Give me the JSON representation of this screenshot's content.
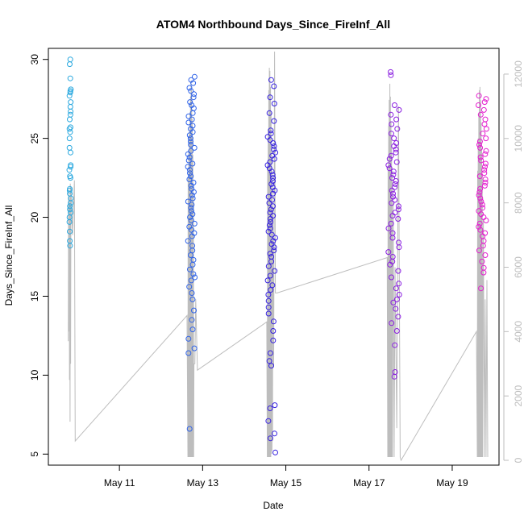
{
  "chart_data": {
    "type": "scatter",
    "title": "ATOM4 Northbound Days_Since_FireInf_All",
    "xlabel": "Date",
    "ylabel": "Days_Since_FireInf_All",
    "x_unit": "date",
    "x_ticks": [
      {
        "value": "2013-05-11",
        "label": "May 11"
      },
      {
        "value": "2013-05-13",
        "label": "May 13"
      },
      {
        "value": "2013-05-15",
        "label": "May 15"
      },
      {
        "value": "2013-05-17",
        "label": "May 17"
      },
      {
        "value": "2013-05-19",
        "label": "May 19"
      }
    ],
    "xlim": [
      "2013-05-09T07:00",
      "2013-05-20T03:00"
    ],
    "ylim": [
      4.3,
      30.7
    ],
    "y_ticks": [
      5,
      10,
      15,
      20,
      25,
      30
    ],
    "y2lim": [
      -150,
      12800
    ],
    "y2_ticks": [
      0,
      2000,
      4000,
      6000,
      8000,
      10000,
      12000
    ],
    "y2_color": "#bdbdbd",
    "grid": false,
    "legend": "none",
    "point_style": "open-circle",
    "groups": [
      {
        "date": "2013-05-09",
        "color": "#29a8df",
        "time_range": [
          "2013-05-09T19:00",
          "2013-05-09T20:00"
        ],
        "y_values": [
          30.0,
          29.7,
          28.8,
          28.1,
          28.0,
          27.9,
          27.7,
          27.3,
          27.0,
          26.7,
          26.5,
          26.2,
          25.7,
          25.6,
          25.4,
          25.0,
          24.4,
          24.1,
          23.3,
          23.2,
          23.0,
          22.6,
          22.5,
          21.8,
          21.7,
          21.5,
          21.2,
          20.9,
          20.7,
          20.5,
          20.3,
          20.0,
          19.7,
          19.1,
          18.5,
          18.2
        ]
      },
      {
        "date": "2013-05-12",
        "color": "#2f63e8",
        "time_range": [
          "2013-05-12T15:30",
          "2013-05-12T19:30"
        ],
        "y_values": [
          28.9,
          28.7,
          28.5,
          28.2,
          28.0,
          27.8,
          27.6,
          27.3,
          27.1,
          26.9,
          26.6,
          26.4,
          26.2,
          26.0,
          25.8,
          25.6,
          25.4,
          25.2,
          25.0,
          24.8,
          24.6,
          24.4,
          24.2,
          24.0,
          23.8,
          23.6,
          23.4,
          23.2,
          23.0,
          22.8,
          22.6,
          22.4,
          22.2,
          22.0,
          21.8,
          21.6,
          21.4,
          21.2,
          21.0,
          20.8,
          20.6,
          20.4,
          20.2,
          20.0,
          19.8,
          19.6,
          19.4,
          19.2,
          19.0,
          18.8,
          18.5,
          18.2,
          17.9,
          17.6,
          17.3,
          17.0,
          16.7,
          16.4,
          16.2,
          16.0,
          15.6,
          15.2,
          14.8,
          14.1,
          13.5,
          12.9,
          12.3,
          11.7,
          11.4,
          6.6
        ]
      },
      {
        "date": "2013-05-14",
        "color": "#3520e0",
        "time_range": [
          "2013-05-14T13:30",
          "2013-05-14T18:00"
        ],
        "y_values": [
          28.7,
          28.3,
          27.6,
          27.2,
          26.6,
          26.1,
          25.5,
          25.3,
          25.1,
          24.9,
          24.7,
          24.5,
          24.3,
          24.1,
          23.9,
          23.7,
          23.5,
          23.3,
          23.1,
          22.9,
          22.7,
          22.5,
          22.3,
          22.1,
          21.9,
          21.7,
          21.5,
          21.3,
          21.1,
          20.9,
          20.7,
          20.5,
          20.3,
          20.1,
          19.9,
          19.7,
          19.5,
          19.3,
          19.1,
          18.9,
          18.7,
          18.5,
          18.3,
          18.1,
          17.9,
          17.7,
          17.5,
          17.2,
          16.9,
          16.6,
          16.3,
          16.0,
          15.7,
          15.4,
          15.1,
          14.7,
          14.3,
          13.9,
          13.4,
          12.8,
          12.2,
          11.4,
          10.9,
          10.6,
          8.1,
          7.9,
          7.1,
          6.3,
          6.0,
          5.1
        ]
      },
      {
        "date": "2013-05-17",
        "color": "#8a1ee0",
        "time_range": [
          "2013-05-17T11:00",
          "2013-05-17T17:30"
        ],
        "y_values": [
          29.2,
          29.0,
          27.1,
          26.8,
          26.5,
          26.2,
          25.9,
          25.6,
          25.3,
          25.0,
          24.7,
          24.5,
          24.3,
          24.1,
          23.9,
          23.7,
          23.5,
          23.3,
          23.1,
          22.9,
          22.7,
          22.5,
          22.3,
          22.1,
          21.9,
          21.7,
          21.5,
          21.3,
          21.1,
          20.9,
          20.7,
          20.5,
          20.3,
          20.1,
          19.9,
          19.6,
          19.3,
          19.0,
          18.7,
          18.4,
          18.1,
          17.8,
          17.5,
          17.2,
          17.0,
          16.6,
          16.2,
          15.8,
          15.5,
          15.1,
          14.8,
          14.6,
          14.2,
          13.7,
          13.3,
          12.8,
          11.9,
          10.2,
          9.9
        ]
      },
      {
        "date": "2013-05-19",
        "color": "#e41ecf",
        "time_range": [
          "2013-05-19T15:00",
          "2013-05-19T20:00"
        ],
        "y_values": [
          27.7,
          27.5,
          27.3,
          27.1,
          26.8,
          26.5,
          26.2,
          25.9,
          25.6,
          25.3,
          25.0,
          24.8,
          24.6,
          24.4,
          24.2,
          24.0,
          23.8,
          23.6,
          23.4,
          23.2,
          23.0,
          22.8,
          22.6,
          22.4,
          22.2,
          22.0,
          21.8,
          21.6,
          21.4,
          21.2,
          21.0,
          20.8,
          20.6,
          20.4,
          20.2,
          20.0,
          19.8,
          19.6,
          19.4,
          19.2,
          19.0,
          18.8,
          18.5,
          18.2,
          17.9,
          17.6,
          17.2,
          16.8,
          16.5,
          15.5
        ]
      }
    ],
    "secondary_series": {
      "type": "line",
      "color": "#bdbdbd",
      "points": [
        [
          "2013-05-09T18:30",
          3700
        ],
        [
          "2013-05-09T18:40",
          8400
        ],
        [
          "2013-05-09T18:50",
          4000
        ],
        [
          "2013-05-09T19:00",
          8200
        ],
        [
          "2013-05-09T19:10",
          2500
        ],
        [
          "2013-05-09T19:20",
          8000
        ],
        [
          "2013-05-09T19:30",
          1200
        ],
        [
          "2013-05-09T19:40",
          8600
        ],
        [
          "2013-05-09T19:50",
          3000
        ],
        [
          "2013-05-09T20:00",
          8500
        ],
        [
          "2013-05-09T21:00",
          7000
        ],
        [
          "2013-05-09T22:00",
          8700
        ],
        [
          "2013-05-09T22:30",
          600
        ],
        [
          "2013-05-12T15:00",
          4500
        ],
        [
          "2013-05-12T15:30",
          100
        ],
        [
          "2013-05-12T15:40",
          8800
        ],
        [
          "2013-05-12T15:50",
          100
        ],
        [
          "2013-05-12T16:00",
          9600
        ],
        [
          "2013-05-12T16:10",
          100
        ],
        [
          "2013-05-12T16:20",
          10200
        ],
        [
          "2013-05-12T16:30",
          100
        ],
        [
          "2013-05-12T16:40",
          10800
        ],
        [
          "2013-05-12T16:50",
          100
        ],
        [
          "2013-05-12T17:00",
          11300
        ],
        [
          "2013-05-12T17:10",
          100
        ],
        [
          "2013-05-12T17:20",
          11800
        ],
        [
          "2013-05-12T17:30",
          100
        ],
        [
          "2013-05-12T17:40",
          11500
        ],
        [
          "2013-05-12T17:50",
          100
        ],
        [
          "2013-05-12T18:00",
          10600
        ],
        [
          "2013-05-12T18:10",
          100
        ],
        [
          "2013-05-12T18:20",
          9500
        ],
        [
          "2013-05-12T18:30",
          100
        ],
        [
          "2013-05-12T18:40",
          8200
        ],
        [
          "2013-05-12T18:50",
          100
        ],
        [
          "2013-05-12T19:00",
          3000
        ],
        [
          "2013-05-12T19:30",
          3000
        ],
        [
          "2013-05-12T20:00",
          5000
        ],
        [
          "2013-05-12T21:00",
          2800
        ],
        [
          "2013-05-14T13:00",
          4300
        ],
        [
          "2013-05-14T13:20",
          100
        ],
        [
          "2013-05-14T13:30",
          9200
        ],
        [
          "2013-05-14T13:40",
          100
        ],
        [
          "2013-05-14T13:50",
          10300
        ],
        [
          "2013-05-14T14:00",
          100
        ],
        [
          "2013-05-14T14:10",
          11500
        ],
        [
          "2013-05-14T14:20",
          100
        ],
        [
          "2013-05-14T14:30",
          12200
        ],
        [
          "2013-05-14T14:40",
          100
        ],
        [
          "2013-05-14T14:50",
          12100
        ],
        [
          "2013-05-14T15:00",
          100
        ],
        [
          "2013-05-14T15:10",
          11600
        ],
        [
          "2013-05-14T15:20",
          100
        ],
        [
          "2013-05-14T15:30",
          10800
        ],
        [
          "2013-05-14T15:40",
          200
        ],
        [
          "2013-05-14T15:50",
          9800
        ],
        [
          "2013-05-14T16:00",
          300
        ],
        [
          "2013-05-14T16:10",
          8500
        ],
        [
          "2013-05-14T16:20",
          600
        ],
        [
          "2013-05-14T16:30",
          7800
        ],
        [
          "2013-05-14T17:00",
          2900
        ],
        [
          "2013-05-14T17:30",
          12700
        ],
        [
          "2013-05-14T18:00",
          5200
        ],
        [
          "2013-05-14T19:00",
          5200
        ],
        [
          "2013-05-17T10:30",
          6300
        ],
        [
          "2013-05-17T10:50",
          100
        ],
        [
          "2013-05-17T11:00",
          9000
        ],
        [
          "2013-05-17T11:10",
          100
        ],
        [
          "2013-05-17T11:20",
          10400
        ],
        [
          "2013-05-17T11:30",
          100
        ],
        [
          "2013-05-17T11:40",
          11200
        ],
        [
          "2013-05-17T11:50",
          100
        ],
        [
          "2013-05-17T12:00",
          11700
        ],
        [
          "2013-05-17T12:10",
          100
        ],
        [
          "2013-05-17T12:20",
          11300
        ],
        [
          "2013-05-17T12:30",
          100
        ],
        [
          "2013-05-17T12:40",
          10500
        ],
        [
          "2013-05-17T12:50",
          100
        ],
        [
          "2013-05-17T13:00",
          10000
        ],
        [
          "2013-05-17T13:10",
          100
        ],
        [
          "2013-05-17T13:20",
          9000
        ],
        [
          "2013-05-17T13:30",
          100
        ],
        [
          "2013-05-17T14:00",
          8000
        ],
        [
          "2013-05-17T14:30",
          100
        ],
        [
          "2013-05-17T15:00",
          6000
        ],
        [
          "2013-05-17T16:00",
          1000
        ],
        [
          "2013-05-17T17:00",
          11000
        ],
        [
          "2013-05-17T18:00",
          100
        ],
        [
          "2013-05-17T18:30",
          0
        ],
        [
          "2013-05-19T14:00",
          4000
        ],
        [
          "2013-05-19T14:30",
          100
        ],
        [
          "2013-05-19T14:40",
          9000
        ],
        [
          "2013-05-19T14:50",
          100
        ],
        [
          "2013-05-19T15:00",
          10000
        ],
        [
          "2013-05-19T15:10",
          100
        ],
        [
          "2013-05-19T15:20",
          10800
        ],
        [
          "2013-05-19T15:30",
          100
        ],
        [
          "2013-05-19T15:40",
          11500
        ],
        [
          "2013-05-19T15:50",
          100
        ],
        [
          "2013-05-19T16:00",
          11600
        ],
        [
          "2013-05-19T16:10",
          100
        ],
        [
          "2013-05-19T16:20",
          11200
        ],
        [
          "2013-05-19T16:30",
          100
        ],
        [
          "2013-05-19T16:40",
          10500
        ],
        [
          "2013-05-19T16:50",
          100
        ],
        [
          "2013-05-19T17:00",
          9700
        ],
        [
          "2013-05-19T17:10",
          100
        ],
        [
          "2013-05-19T17:20",
          8800
        ],
        [
          "2013-05-19T17:30",
          100
        ],
        [
          "2013-05-19T18:00",
          7500
        ],
        [
          "2013-05-19T18:30",
          100
        ],
        [
          "2013-05-19T19:00",
          5000
        ],
        [
          "2013-05-19T19:30",
          100
        ],
        [
          "2013-05-19T20:00",
          5600
        ],
        [
          "2013-05-19T20:30",
          100
        ]
      ]
    }
  }
}
